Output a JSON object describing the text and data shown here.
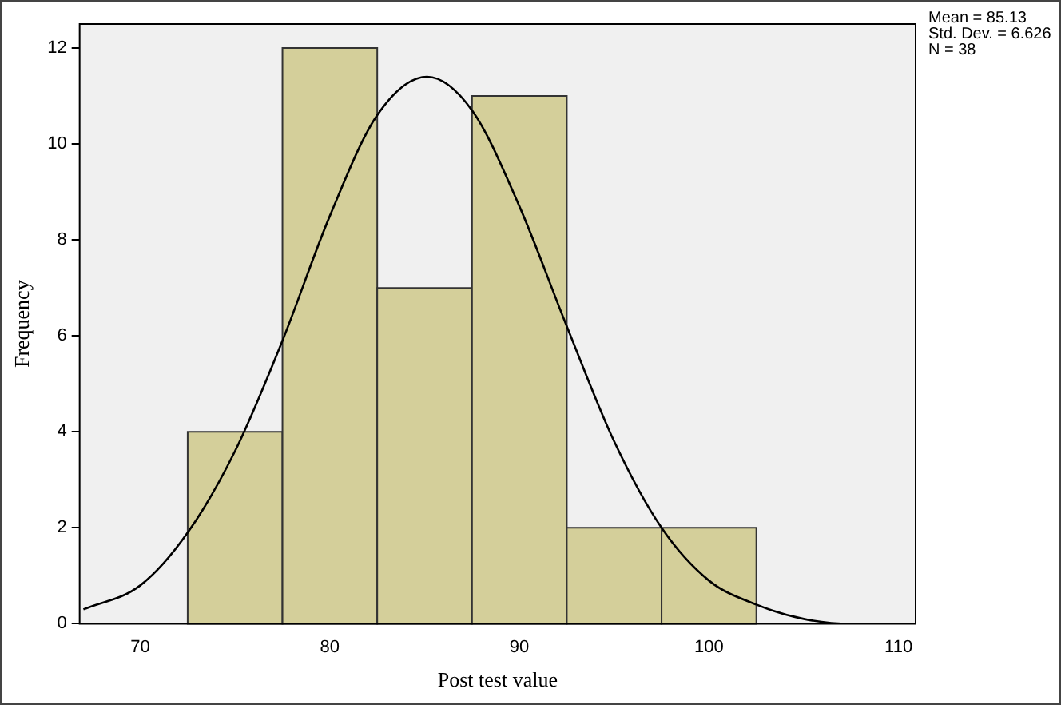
{
  "chart_data": {
    "type": "histogram",
    "xlabel": "Post test value",
    "ylabel": "Frequency",
    "bins": [
      72.5,
      77.5,
      82.5,
      87.5,
      92.5,
      97.5,
      102.5
    ],
    "values": [
      4,
      12,
      7,
      11,
      2,
      2
    ],
    "color": "#d4cf9a",
    "series": [
      {
        "type": "line",
        "color": "#000000",
        "x": [
          67,
          70,
          72.5,
          75,
          77.5,
          80,
          82.5,
          85.13,
          87.5,
          90,
          92.5,
          95,
          97.5,
          100,
          102.5,
          105,
          107.5,
          110
        ],
        "values": [
          0.3,
          0.8,
          1.9,
          3.6,
          5.9,
          8.5,
          10.6,
          11.4,
          10.7,
          8.7,
          6.2,
          3.8,
          2.0,
          0.9,
          0.4,
          0.1,
          0.0,
          0.0
        ]
      }
    ],
    "xlim": [
      66.8,
      110.9
    ],
    "xticks": [
      70,
      80,
      90,
      100,
      110
    ],
    "ylim": [
      0,
      12.5
    ],
    "yticks": [
      0,
      2,
      4,
      6,
      8,
      10,
      12
    ],
    "grid": false,
    "legend": false,
    "marker": "none",
    "line_style": "solid",
    "annotations": [
      "Mean = 85.13",
      "Std. Dev. = 6.626",
      "N = 38"
    ]
  }
}
